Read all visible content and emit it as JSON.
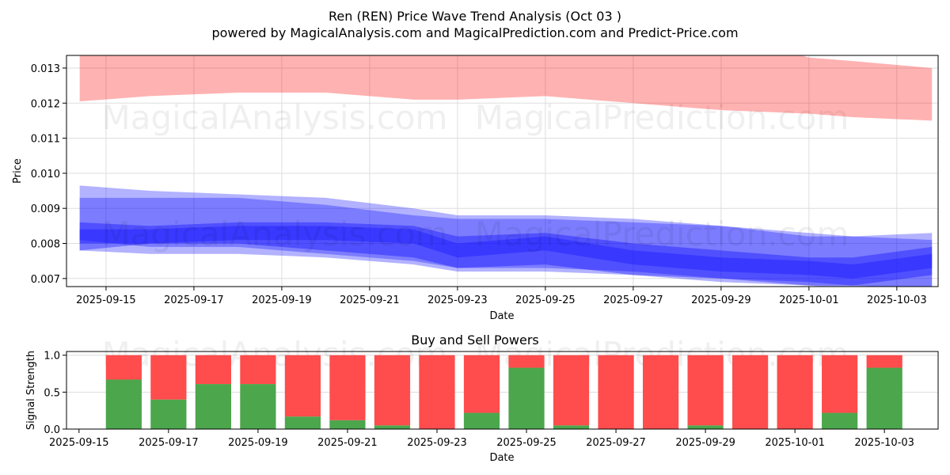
{
  "chart_data": [
    {
      "type": "area",
      "title": "Ren (REN) Price Wave Trend Analysis (Oct 03 )",
      "subtitle": "powered by MagicalAnalysis.com and MagicalPrediction.com and Predict-Price.com",
      "xlabel": "Date",
      "ylabel": "Price",
      "ylim": [
        0.00677,
        0.01336
      ],
      "xlim_days_from_start": [
        -0.9,
        18.94
      ],
      "start_date": "2025-09-15",
      "grid": true,
      "x_ticks": [
        "2025-09-15",
        "2025-09-17",
        "2025-09-19",
        "2025-09-21",
        "2025-09-23",
        "2025-09-25",
        "2025-09-27",
        "2025-09-29",
        "2025-10-01",
        "2025-10-03"
      ],
      "y_ticks": [
        "0.007",
        "0.008",
        "0.009",
        "0.010",
        "0.011",
        "0.012",
        "0.013"
      ],
      "watermarks": [
        "MagicalAnalysis.com",
        "MagicalPrediction.com"
      ],
      "x_days": [
        -0.6,
        1,
        3,
        5,
        7,
        8,
        10,
        12,
        14,
        16,
        17,
        18.8
      ],
      "bands": [
        {
          "name": "resistance",
          "color": "#ff0000",
          "opacity": 0.3,
          "upper": [
            0.014,
            0.014,
            0.014,
            0.014,
            0.014,
            0.014,
            0.014,
            0.014,
            0.014,
            0.0133,
            0.0132,
            0.013
          ],
          "lower": [
            0.01205,
            0.0122,
            0.0123,
            0.0123,
            0.0121,
            0.0121,
            0.0122,
            0.012,
            0.0118,
            0.0117,
            0.0116,
            0.0115
          ]
        },
        {
          "name": "wave-outer",
          "color": "#0000ff",
          "opacity": 0.3,
          "upper": [
            0.00965,
            0.0095,
            0.0094,
            0.0093,
            0.009,
            0.0088,
            0.0088,
            0.0087,
            0.0085,
            0.0083,
            0.0082,
            0.0083
          ],
          "lower": [
            0.0078,
            0.0077,
            0.0077,
            0.0076,
            0.0074,
            0.0072,
            0.0072,
            0.0071,
            0.0069,
            0.0068,
            0.0067,
            0.0066
          ]
        },
        {
          "name": "wave-middle",
          "color": "#0000ff",
          "opacity": 0.3,
          "upper": [
            0.0093,
            0.0093,
            0.0093,
            0.0091,
            0.0088,
            0.0087,
            0.0087,
            0.0086,
            0.0085,
            0.0082,
            0.0082,
            0.0081
          ],
          "lower": [
            0.0081,
            0.0079,
            0.0079,
            0.0077,
            0.0075,
            0.0073,
            0.0073,
            0.0072,
            0.007,
            0.0069,
            0.0068,
            0.0067
          ]
        },
        {
          "name": "wave-inner",
          "color": "#0000ff",
          "opacity": 0.35,
          "upper": [
            0.0086,
            0.0085,
            0.0086,
            0.0086,
            0.0085,
            0.0082,
            0.0083,
            0.008,
            0.0078,
            0.0076,
            0.0076,
            0.0079
          ],
          "lower": [
            0.0078,
            0.008,
            0.008,
            0.0078,
            0.0076,
            0.0073,
            0.0074,
            0.0071,
            0.007,
            0.0068,
            0.0068,
            0.0071
          ]
        },
        {
          "name": "wave-core",
          "color": "#2020ff",
          "opacity": 0.5,
          "upper": [
            0.0084,
            0.0084,
            0.0085,
            0.0085,
            0.0084,
            0.008,
            0.0082,
            0.0078,
            0.0076,
            0.0075,
            0.0074,
            0.0077
          ],
          "lower": [
            0.008,
            0.008,
            0.0081,
            0.0081,
            0.008,
            0.0076,
            0.0078,
            0.0074,
            0.0072,
            0.0071,
            0.007,
            0.0073
          ]
        }
      ]
    },
    {
      "type": "bar",
      "title": "Buy and Sell Powers",
      "xlabel": "Date",
      "ylabel": "Signal Strength",
      "ylim": [
        0,
        1.05
      ],
      "xlim_days_from_start": [
        -0.28,
        19.2
      ],
      "start_date": "2025-09-15",
      "x_ticks": [
        "2025-09-15",
        "2025-09-17",
        "2025-09-19",
        "2025-09-21",
        "2025-09-23",
        "2025-09-25",
        "2025-09-27",
        "2025-09-29",
        "2025-10-01",
        "2025-10-03"
      ],
      "y_ticks": [
        "0.0",
        "0.5",
        "1.0"
      ],
      "categories": [
        "2025-09-16",
        "2025-09-17",
        "2025-09-18",
        "2025-09-19",
        "2025-09-20",
        "2025-09-21",
        "2025-09-22",
        "2025-09-23",
        "2025-09-24",
        "2025-09-25",
        "2025-09-26",
        "2025-09-27",
        "2025-09-28",
        "2025-09-29",
        "2025-09-30",
        "2025-10-01",
        "2025-10-02",
        "2025-10-03"
      ],
      "series": [
        {
          "name": "Buy",
          "color": "#4ca64c",
          "values": [
            0.67,
            0.4,
            0.61,
            0.61,
            0.17,
            0.12,
            0.05,
            0.0,
            0.22,
            0.83,
            0.05,
            0.0,
            0.0,
            0.05,
            0.0,
            0.0,
            0.22,
            0.83
          ]
        },
        {
          "name": "Sell",
          "color": "#ff4c4c",
          "values": [
            0.33,
            0.6,
            0.39,
            0.39,
            0.83,
            0.88,
            0.95,
            1.0,
            0.78,
            0.17,
            0.95,
            1.0,
            1.0,
            0.95,
            1.0,
            1.0,
            0.78,
            0.17
          ]
        }
      ]
    }
  ]
}
